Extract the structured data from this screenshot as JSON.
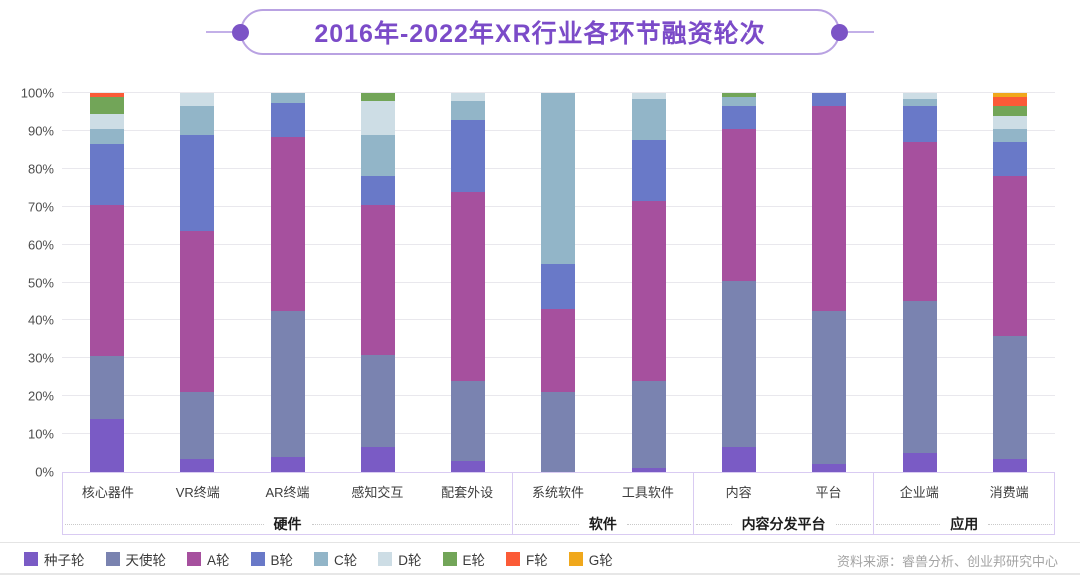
{
  "title": "2016年-2022年XR行业各环节融资轮次",
  "source": "资料来源：睿兽分析、创业邦研究中心",
  "colors": {
    "title_purple": "#7b4bc8",
    "pill_border": "#b9a2e2",
    "axis_box_border": "#d9cbf2",
    "gridline": "#e9e8ed"
  },
  "chart_data": {
    "type": "bar",
    "stacked": true,
    "unit": "%",
    "title": "2016年-2022年XR行业各环节融资轮次",
    "categories": [
      "核心器件",
      "VR终端",
      "AR终端",
      "感知交互",
      "配套外设",
      "系统软件",
      "工具软件",
      "内容",
      "平台",
      "企业端",
      "消费端"
    ],
    "groups": [
      {
        "label": "硬件",
        "span": 5
      },
      {
        "label": "软件",
        "span": 2
      },
      {
        "label": "内容分发平台",
        "span": 2
      },
      {
        "label": "应用",
        "span": 2
      }
    ],
    "series": [
      {
        "name": "种子轮",
        "color": "#7a5bc5",
        "values": [
          14,
          3.5,
          4,
          6.5,
          3,
          0,
          1,
          6.5,
          2,
          5,
          3.5
        ]
      },
      {
        "name": "天使轮",
        "color": "#7a83b0",
        "values": [
          16.5,
          17.5,
          38.5,
          24.5,
          21,
          21,
          23,
          44,
          40.5,
          40,
          32.5
        ]
      },
      {
        "name": "A轮",
        "color": "#a6509e",
        "values": [
          40,
          42.5,
          46,
          39.5,
          50,
          22,
          47.5,
          40,
          54,
          42,
          42
        ]
      },
      {
        "name": "B轮",
        "color": "#6979c8",
        "values": [
          16,
          25.5,
          9,
          7.5,
          19,
          12,
          16,
          6,
          3.5,
          9.5,
          9
        ]
      },
      {
        "name": "C轮",
        "color": "#92b5c8",
        "values": [
          4,
          7.5,
          2.5,
          11,
          5,
          45,
          11,
          2.5,
          0,
          2,
          3.5
        ]
      },
      {
        "name": "D轮",
        "color": "#cddde5",
        "values": [
          4,
          3.5,
          0,
          9,
          2,
          0,
          1.5,
          0,
          0,
          1.5,
          3.5
        ]
      },
      {
        "name": "E轮",
        "color": "#72a558",
        "values": [
          4.5,
          0,
          0,
          2,
          0,
          0,
          0,
          1,
          0,
          0,
          2.5
        ]
      },
      {
        "name": "F轮",
        "color": "#fb5b37",
        "values": [
          1,
          0,
          0,
          0,
          0,
          0,
          0,
          0,
          0,
          0,
          2.5
        ]
      },
      {
        "name": "G轮",
        "color": "#f0a81c",
        "values": [
          0,
          0,
          0,
          0,
          0,
          0,
          0,
          0,
          0,
          0,
          1
        ]
      }
    ],
    "y_ticks": [
      "0%",
      "10%",
      "20%",
      "30%",
      "40%",
      "50%",
      "60%",
      "70%",
      "80%",
      "90%",
      "100%"
    ],
    "ylim": [
      0,
      100
    ],
    "grid": true,
    "legend_position": "bottom-left"
  }
}
